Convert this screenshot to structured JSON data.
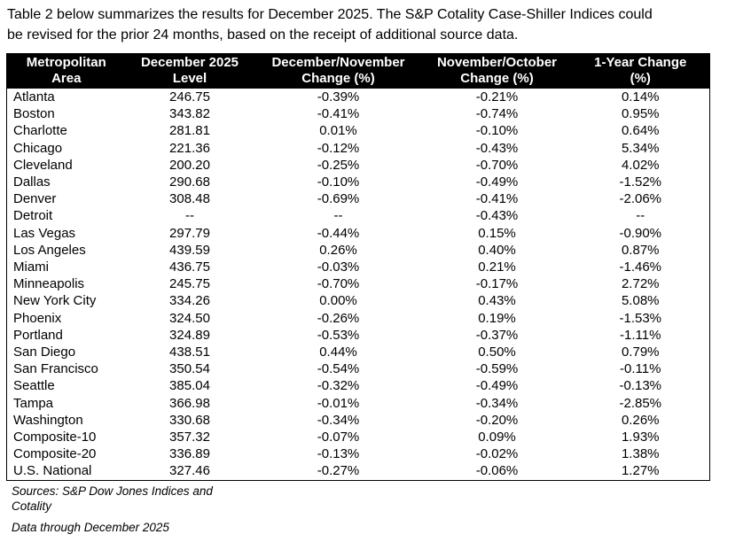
{
  "intro": {
    "line1": "Table 2 below summarizes the results for December 2025. The S&P Cotality Case-Shiller Indices could",
    "line2": "be revised for the prior 24 months, based on the receipt of additional source data."
  },
  "table": {
    "headers": [
      {
        "line1": "Metropolitan",
        "line2": "Area"
      },
      {
        "line1": "December 2025",
        "line2": "Level"
      },
      {
        "line1": "December/November",
        "line2": "Change (%)"
      },
      {
        "line1": "November/October",
        "line2": "Change (%)"
      },
      {
        "line1": "1-Year Change",
        "line2": "(%)"
      }
    ],
    "rows": [
      [
        "Atlanta",
        "246.75",
        "-0.39%",
        "-0.21%",
        "0.14%"
      ],
      [
        "Boston",
        "343.82",
        "-0.41%",
        "-0.74%",
        "0.95%"
      ],
      [
        "Charlotte",
        "281.81",
        "0.01%",
        "-0.10%",
        "0.64%"
      ],
      [
        "Chicago",
        "221.36",
        "-0.12%",
        "-0.43%",
        "5.34%"
      ],
      [
        "Cleveland",
        "200.20",
        "-0.25%",
        "-0.70%",
        "4.02%"
      ],
      [
        "Dallas",
        "290.68",
        "-0.10%",
        "-0.49%",
        "-1.52%"
      ],
      [
        "Denver",
        "308.48",
        "-0.69%",
        "-0.41%",
        "-2.06%"
      ],
      [
        "Detroit",
        "--",
        "--",
        "-0.43%",
        "--"
      ],
      [
        "Las Vegas",
        "297.79",
        "-0.44%",
        "0.15%",
        "-0.90%"
      ],
      [
        "Los Angeles",
        "439.59",
        "0.26%",
        "0.40%",
        "0.87%"
      ],
      [
        "Miami",
        "436.75",
        "-0.03%",
        "0.21%",
        "-1.46%"
      ],
      [
        "Minneapolis",
        "245.75",
        "-0.70%",
        "-0.17%",
        "2.72%"
      ],
      [
        "New York City",
        "334.26",
        "0.00%",
        "0.43%",
        "5.08%"
      ],
      [
        "Phoenix",
        "324.50",
        "-0.26%",
        "0.19%",
        "-1.53%"
      ],
      [
        "Portland",
        "324.89",
        "-0.53%",
        "-0.37%",
        "-1.11%"
      ],
      [
        "San Diego",
        "438.51",
        "0.44%",
        "0.50%",
        "0.79%"
      ],
      [
        "San Francisco",
        "350.54",
        "-0.54%",
        "-0.59%",
        "-0.11%"
      ],
      [
        "Seattle",
        "385.04",
        "-0.32%",
        "-0.49%",
        "-0.13%"
      ],
      [
        "Tampa",
        "366.98",
        "-0.01%",
        "-0.34%",
        "-2.85%"
      ],
      [
        "Washington",
        "330.68",
        "-0.34%",
        "-0.20%",
        "0.26%"
      ],
      [
        "Composite-10",
        "357.32",
        "-0.07%",
        "0.09%",
        "1.93%"
      ],
      [
        "Composite-20",
        "336.89",
        "-0.13%",
        "-0.02%",
        "1.38%"
      ],
      [
        "U.S. National",
        "327.46",
        "-0.27%",
        "-0.06%",
        "1.27%"
      ]
    ]
  },
  "footer": {
    "sources_line1": "Sources: S&P Dow Jones Indices and",
    "sources_line2": "Cotality",
    "data_through": "Data through December 2025"
  },
  "colors": {
    "header_bg": "#000000",
    "header_text": "#ffffff",
    "body_text": "#000000",
    "border": "#000000"
  }
}
